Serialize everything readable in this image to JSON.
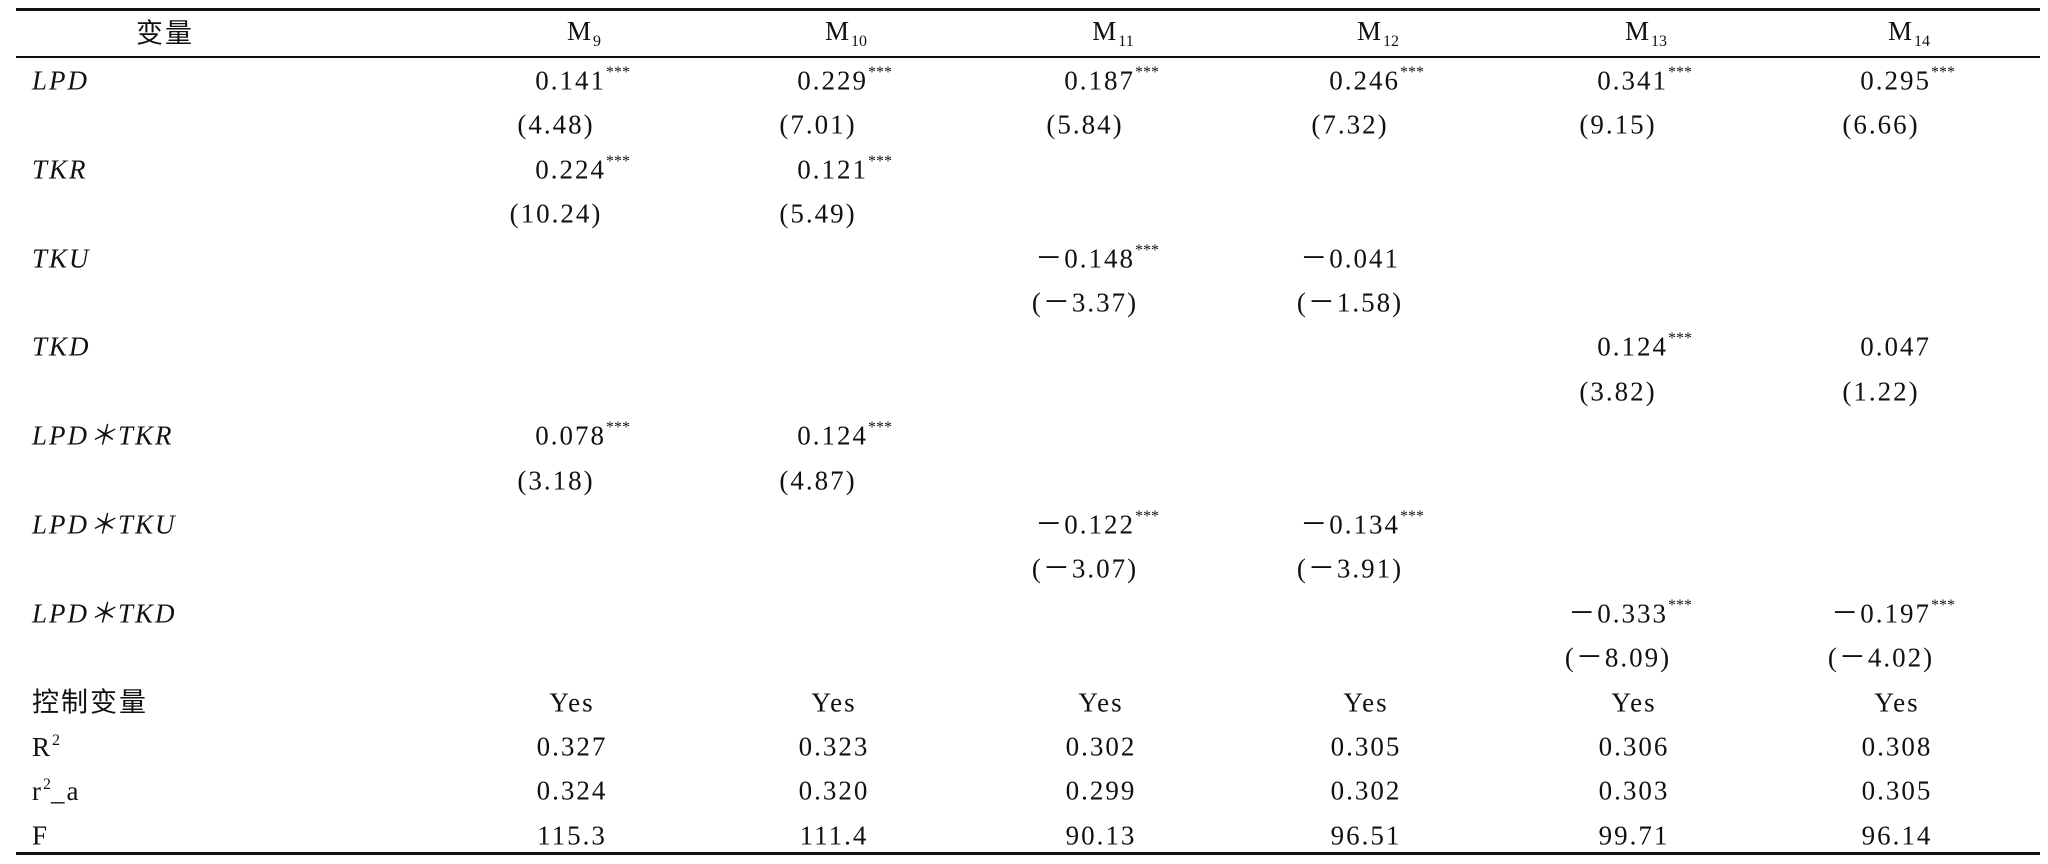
{
  "table": {
    "header": [
      {
        "text": "变量"
      },
      {
        "text": "M",
        "sub": "9"
      },
      {
        "text": "M",
        "sub": "10"
      },
      {
        "text": "M",
        "sub": "11"
      },
      {
        "text": "M",
        "sub": "12"
      },
      {
        "text": "M",
        "sub": "13"
      },
      {
        "text": "M",
        "sub": "14"
      }
    ],
    "coef_rows": [
      {
        "label": "LPD",
        "cells": [
          {
            "coef": "0.141",
            "stars": "***",
            "t": "(4.48)"
          },
          {
            "coef": "0.229",
            "stars": "***",
            "t": "(7.01)"
          },
          {
            "coef": "0.187",
            "stars": "***",
            "t": "(5.84)"
          },
          {
            "coef": "0.246",
            "stars": "***",
            "t": "(7.32)"
          },
          {
            "coef": "0.341",
            "stars": "***",
            "t": "(9.15)"
          },
          {
            "coef": "0.295",
            "stars": "***",
            "t": "(6.66)"
          }
        ]
      },
      {
        "label": "TKR",
        "cells": [
          {
            "coef": "0.224",
            "stars": "***",
            "t": "(10.24)"
          },
          {
            "coef": "0.121",
            "stars": "***",
            "t": "(5.49)"
          },
          null,
          null,
          null,
          null
        ]
      },
      {
        "label": "TKU",
        "cells": [
          null,
          null,
          {
            "coef": "－0.148",
            "stars": "***",
            "t": "(－3.37)"
          },
          {
            "coef": "－0.041",
            "t": "(－1.58)"
          },
          null,
          null
        ]
      },
      {
        "label": "TKD",
        "cells": [
          null,
          null,
          null,
          null,
          {
            "coef": "0.124",
            "stars": "***",
            "t": "(3.82)"
          },
          {
            "coef": "0.047",
            "t": "(1.22)"
          }
        ]
      },
      {
        "label": "LPD＊TKR",
        "cells": [
          {
            "coef": "0.078",
            "stars": "***",
            "t": "(3.18)"
          },
          {
            "coef": "0.124",
            "stars": "***",
            "t": "(4.87)"
          },
          null,
          null,
          null,
          null
        ]
      },
      {
        "label": "LPD＊TKU",
        "cells": [
          null,
          null,
          {
            "coef": "－0.122",
            "stars": "***",
            "t": "(－3.07)"
          },
          {
            "coef": "－0.134",
            "stars": "***",
            "t": "(－3.91)"
          },
          null,
          null
        ]
      },
      {
        "label": "LPD＊TKD",
        "cells": [
          null,
          null,
          null,
          null,
          {
            "coef": "－0.333",
            "stars": "***",
            "t": "(－8.09)"
          },
          {
            "coef": "－0.197",
            "stars": "***",
            "t": "(－4.02)"
          }
        ]
      }
    ],
    "stat_rows": [
      {
        "label": {
          "text": "控制变量"
        },
        "cells": [
          "Yes",
          "Yes",
          "Yes",
          "Yes",
          "Yes",
          "Yes"
        ]
      },
      {
        "label": {
          "text": "R",
          "sup": "2"
        },
        "cells": [
          "0.327",
          "0.323",
          "0.302",
          "0.305",
          "0.306",
          "0.308"
        ]
      },
      {
        "label": {
          "text": "r",
          "sup": "2",
          "tail": "_a"
        },
        "cells": [
          "0.324",
          "0.320",
          "0.299",
          "0.302",
          "0.303",
          "0.305"
        ]
      },
      {
        "label": {
          "text": "F"
        },
        "cells": [
          "115.3",
          "111.4",
          "90.13",
          "96.51",
          "99.71",
          "96.14"
        ]
      }
    ]
  }
}
